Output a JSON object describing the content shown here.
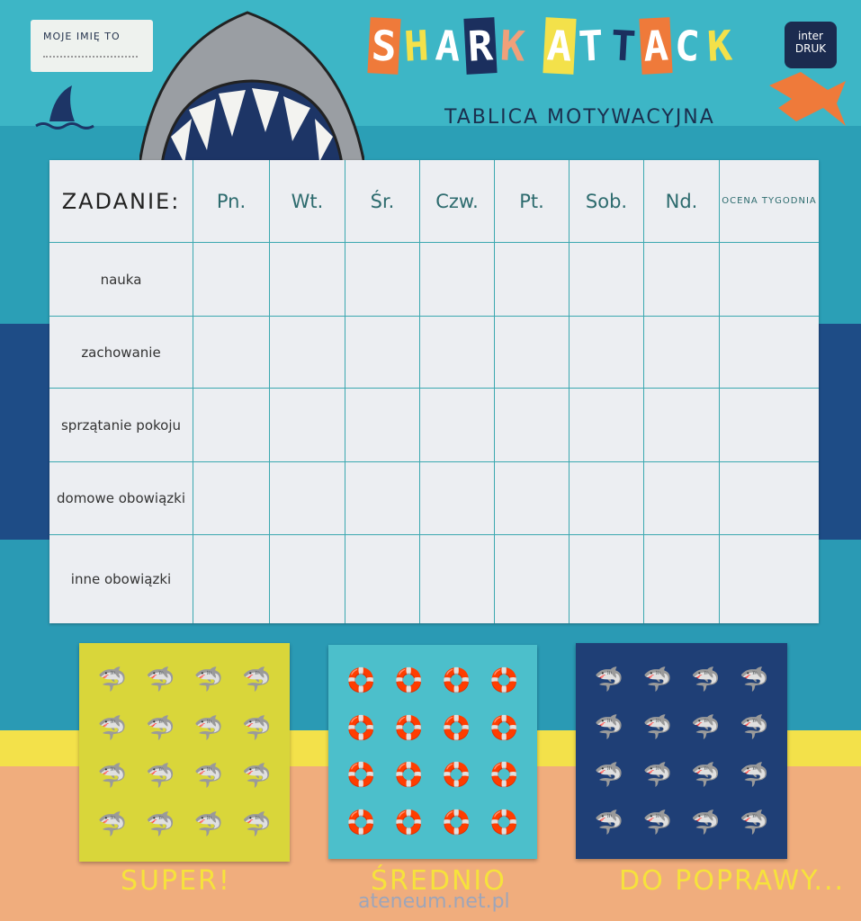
{
  "header": {
    "name_label": "MOJE IMIĘ TO",
    "title_letters": [
      "S",
      "H",
      "A",
      "R",
      "K",
      " ",
      "A",
      "T",
      "T",
      "A",
      "C",
      "K"
    ],
    "title_colors": [
      "#ef7a3a",
      "#f3e14a",
      "#ffffff",
      "#1b2f5e",
      "#f0a07a",
      "",
      "#f3e14a",
      "#ffffff",
      "#1b2f5e",
      "#ef7a3a",
      "#ffffff",
      "#f3e14a"
    ],
    "subtitle": "TABLICA MOTYWACYJNA",
    "logo_top": "inter",
    "logo_bottom": "DRUK"
  },
  "table": {
    "corner": "ZADANIE:",
    "days": [
      "Pn.",
      "Wt.",
      "Śr.",
      "Czw.",
      "Pt.",
      "Sob.",
      "Nd."
    ],
    "rating_header": "OCENA TYGODNIA",
    "tasks": [
      "nauka",
      "zachowanie",
      "sprzątanie pokoju",
      "domowe obowiązki",
      "inne obowiązki"
    ]
  },
  "stickers": [
    {
      "label": "SUPER!",
      "color": "#d9d63a",
      "icon": "smiling-shark-icon",
      "glyph": "🦈"
    },
    {
      "label": "ŚREDNIO",
      "color": "#4cbfcb",
      "icon": "life-ring-icon",
      "glyph": "🛟"
    },
    {
      "label": "DO POPRAWY...",
      "color": "#1f3f76",
      "icon": "shark-head-icon",
      "glyph": "🦈"
    }
  ],
  "watermark": "ateneum.net.pl"
}
